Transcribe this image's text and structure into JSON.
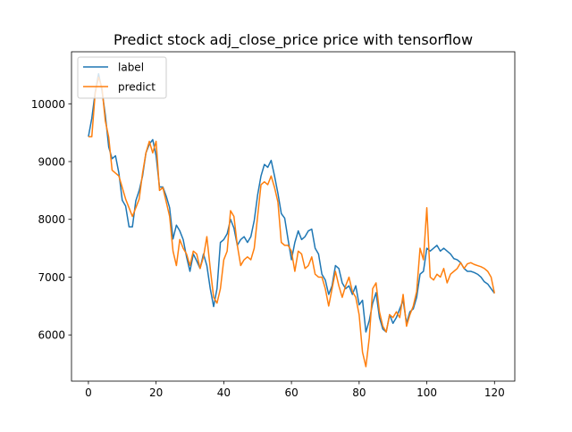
{
  "chart_data": {
    "type": "line",
    "title": "Predict stock adj_close_price price with tensorflow",
    "xlabel": "",
    "ylabel": "",
    "xlim": [
      -5,
      126
    ],
    "ylim": [
      5200,
      10900
    ],
    "x_ticks": [
      0,
      20,
      40,
      60,
      80,
      100,
      120
    ],
    "x_tick_labels": [
      "0",
      "20",
      "40",
      "60",
      "80",
      "100",
      "120"
    ],
    "y_ticks": [
      6000,
      7000,
      8000,
      9000,
      10000
    ],
    "y_tick_labels": [
      "6000",
      "7000",
      "8000",
      "9000",
      "10000"
    ],
    "grid": false,
    "legend_position": "top-left",
    "series": [
      {
        "name": "label",
        "color": "#1f77b4",
        "values": [
          9430,
          9750,
          10200,
          10520,
          10230,
          9800,
          9250,
          9050,
          9100,
          8800,
          8330,
          8230,
          7870,
          7870,
          8320,
          8500,
          8750,
          9150,
          9300,
          9380,
          9100,
          8560,
          8560,
          8400,
          8200,
          7660,
          7900,
          7800,
          7650,
          7350,
          7100,
          7400,
          7280,
          7150,
          7400,
          7200,
          6800,
          6490,
          6800,
          7600,
          7650,
          7750,
          8000,
          7850,
          7550,
          7650,
          7700,
          7600,
          7700,
          7980,
          8420,
          8750,
          8950,
          8900,
          9020,
          8750,
          8450,
          8100,
          8020,
          7650,
          7300,
          7600,
          7800,
          7650,
          7700,
          7800,
          7830,
          7500,
          7400,
          7050,
          6950,
          6700,
          6850,
          7200,
          7150,
          6900,
          6800,
          6850,
          6700,
          6850,
          6520,
          6600,
          6050,
          6250,
          6550,
          6730,
          6300,
          6100,
          6050,
          6350,
          6200,
          6300,
          6450,
          6600,
          6200,
          6400,
          6450,
          6650,
          7050,
          7100,
          7500,
          7450,
          7500,
          7550,
          7450,
          7500,
          7450,
          7400,
          7320,
          7300,
          7250,
          7150,
          7100,
          7100,
          7080,
          7050,
          7000,
          6920,
          6880,
          6800,
          6720
        ]
      },
      {
        "name": "predict",
        "color": "#ff7f0e",
        "values": [
          9430,
          9430,
          10180,
          10460,
          10280,
          9700,
          9420,
          8850,
          8800,
          8750,
          8550,
          8350,
          8200,
          8050,
          8200,
          8350,
          8800,
          9150,
          9350,
          9150,
          9350,
          8500,
          8550,
          8300,
          8050,
          7450,
          7200,
          7650,
          7500,
          7400,
          7200,
          7450,
          7400,
          7150,
          7350,
          7700,
          7150,
          6650,
          6550,
          6800,
          7300,
          7450,
          8150,
          8050,
          7550,
          7200,
          7300,
          7350,
          7300,
          7500,
          8050,
          8600,
          8650,
          8600,
          8750,
          8550,
          8300,
          7600,
          7550,
          7550,
          7450,
          7100,
          7450,
          7400,
          7150,
          7200,
          7350,
          7050,
          7000,
          7000,
          6800,
          6500,
          6800,
          7100,
          6850,
          6650,
          6850,
          7000,
          6750,
          6650,
          6350,
          5700,
          5450,
          5950,
          6800,
          6900,
          6400,
          6150,
          6050,
          6350,
          6300,
          6400,
          6300,
          6700,
          6150,
          6350,
          6500,
          6750,
          7500,
          7300,
          8200,
          7000,
          6950,
          7050,
          7000,
          7150,
          6900,
          7050,
          7100,
          7150,
          7250,
          7150,
          7230,
          7250,
          7220,
          7200,
          7180,
          7150,
          7100,
          7000,
          6720
        ]
      }
    ]
  }
}
